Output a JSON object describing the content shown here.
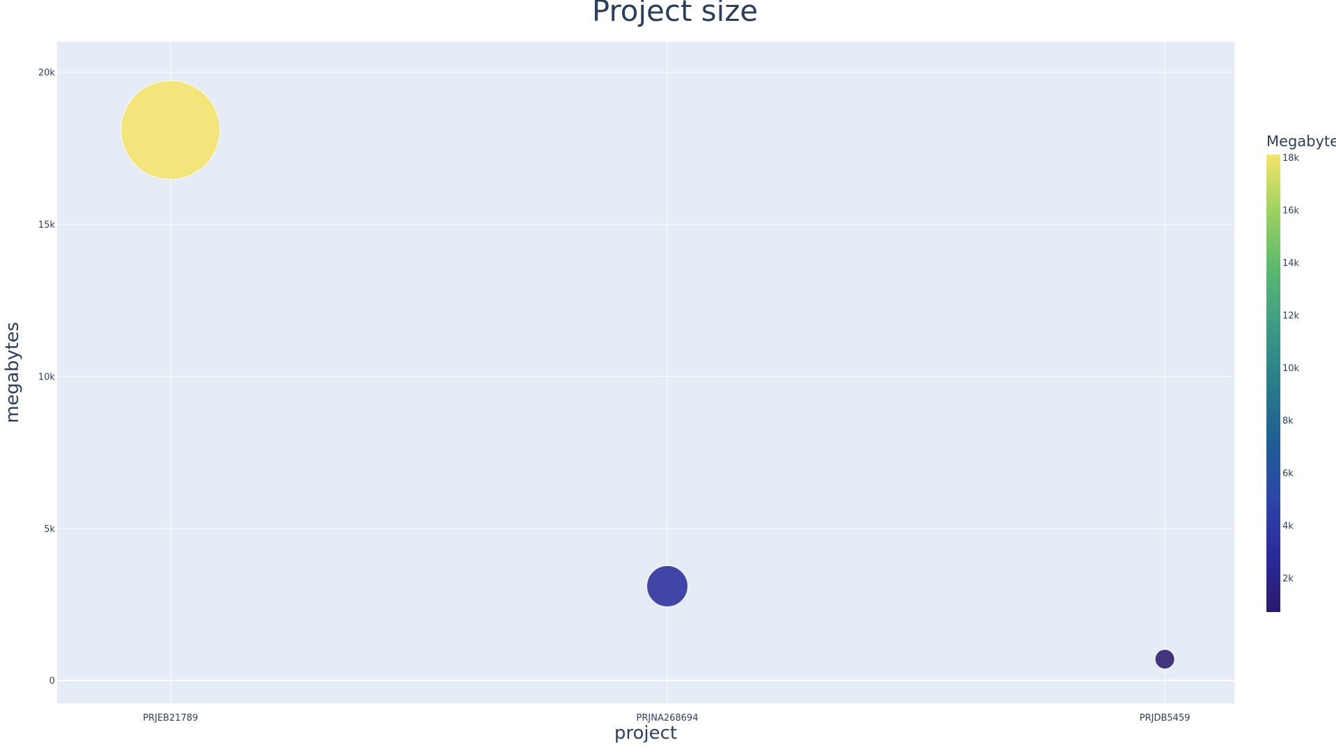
{
  "chart_data": {
    "type": "scatter",
    "title": "Project size",
    "xlabel": "project",
    "ylabel": "megabytes",
    "categories": [
      "PRJEB21789",
      "PRJNA268694",
      "PRJDB5459"
    ],
    "values": [
      18100,
      3100,
      700
    ],
    "ylim": [
      -750,
      21000
    ],
    "y_ticks": [
      0,
      5000,
      10000,
      15000,
      20000
    ],
    "y_tick_labels": [
      "0",
      "5k",
      "10k",
      "15k",
      "20k"
    ],
    "grid": true,
    "marker_size_encodes": "value",
    "colorbar": {
      "title": "Megabyte",
      "range": [
        700,
        18100
      ],
      "ticks": [
        2000,
        4000,
        6000,
        8000,
        10000,
        12000,
        14000,
        16000,
        18000
      ],
      "tick_labels": [
        "2k",
        "4k",
        "6k",
        "8k",
        "10k",
        "12k",
        "14k",
        "16k",
        "18k"
      ],
      "colorscale": [
        "#0d0887",
        "#46039f",
        "#7201a8",
        "#9c179e",
        "#bd3786",
        "#d8576b",
        "#ed7953",
        "#fb9f3a",
        "#fdca26",
        "#f0f921"
      ],
      "palette": "plasma"
    },
    "plot_background": "#e5ecf6",
    "grid_color": "#ffffff"
  }
}
